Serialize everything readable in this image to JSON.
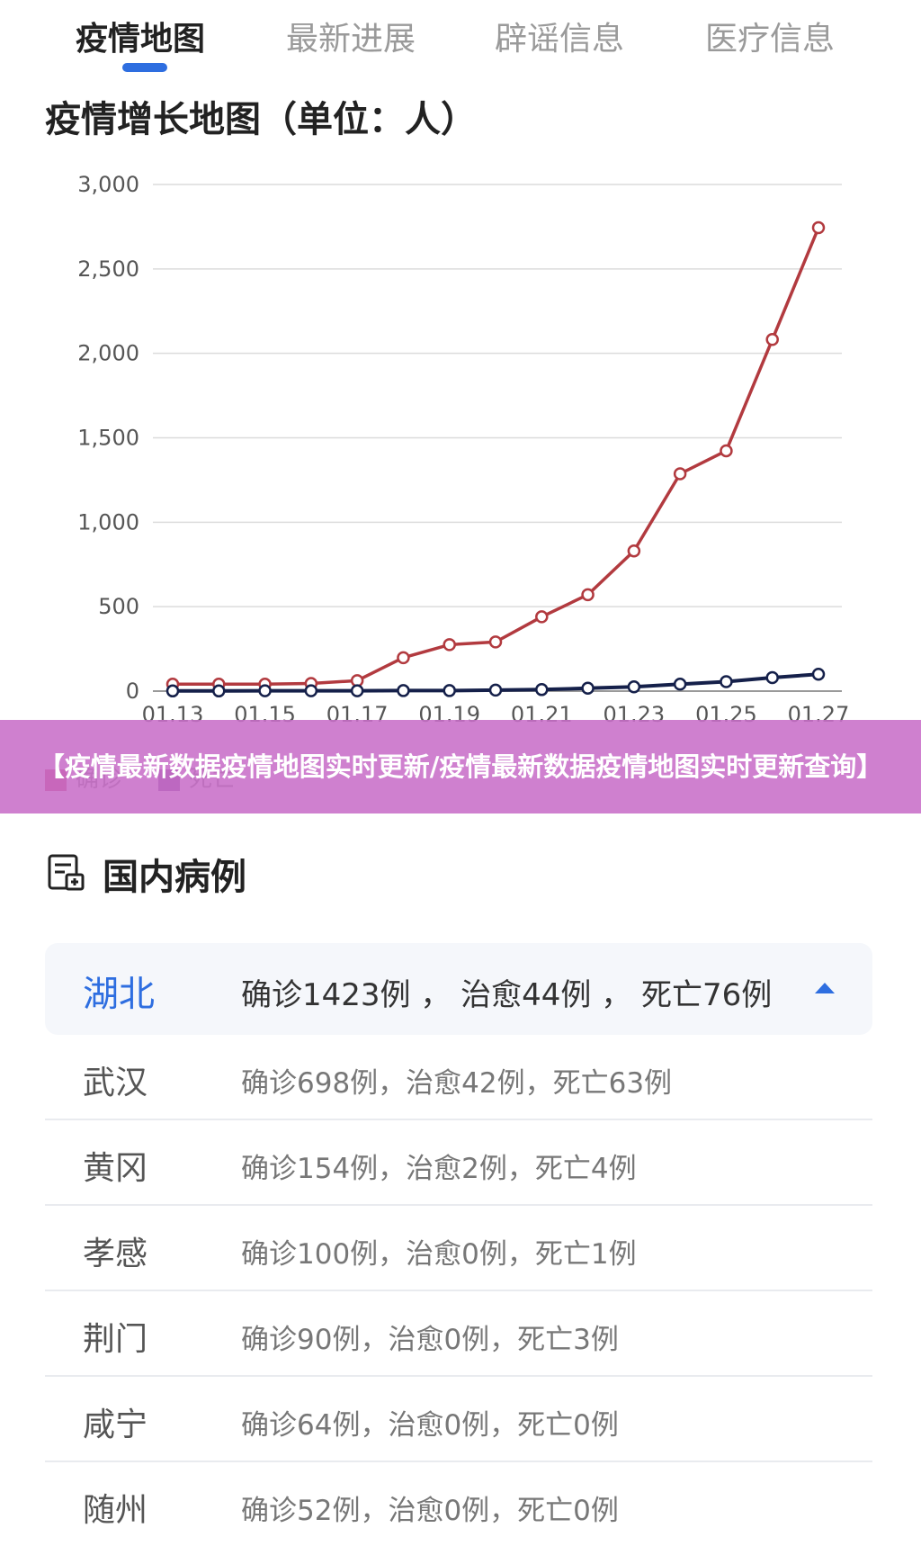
{
  "tabs": [
    {
      "label": "疫情地图",
      "active": true
    },
    {
      "label": "最新进展",
      "active": false
    },
    {
      "label": "辟谣信息",
      "active": false
    },
    {
      "label": "医疗信息",
      "active": false
    }
  ],
  "chart_title": "疫情增长地图（单位：人）",
  "chart_data": {
    "type": "line",
    "title": "疫情增长地图（单位：人）",
    "x": [
      "01.13",
      "01.14",
      "01.15",
      "01.16",
      "01.17",
      "01.18",
      "01.19",
      "01.20",
      "01.21",
      "01.22",
      "01.23",
      "01.24",
      "01.25",
      "01.26",
      "01.27"
    ],
    "x_tick_labels": [
      "01.13",
      "01.15",
      "01.17",
      "01.19",
      "01.21",
      "01.23",
      "01.25",
      "01.27"
    ],
    "ylim": [
      0,
      3000
    ],
    "y_ticks": [
      "0",
      "500",
      "1,000",
      "1,500",
      "2,000",
      "2,500",
      "3,000"
    ],
    "grid": true,
    "legend_position": "bottom-left",
    "series": [
      {
        "name": "确诊",
        "color": "#b23a3f",
        "values": [
          41,
          41,
          41,
          45,
          62,
          198,
          275,
          291,
          440,
          571,
          830,
          1287,
          1423,
          2082,
          2744
        ]
      },
      {
        "name": "死亡",
        "color": "#15204a",
        "values": [
          1,
          1,
          2,
          2,
          2,
          3,
          3,
          6,
          9,
          17,
          25,
          41,
          56,
          80,
          100
        ]
      }
    ]
  },
  "banner": "【疫情最新数据疫情地图实时更新/疫情最新数据疫情地图实时更新查询】",
  "section_title": "国内病例",
  "province": {
    "name": "湖北",
    "stats": "确诊1423例 ， 治愈44例 ， 死亡76例"
  },
  "cities": [
    {
      "name": "武汉",
      "stats": "确诊698例，治愈42例，死亡63例"
    },
    {
      "name": "黄冈",
      "stats": "确诊154例，治愈2例，死亡4例"
    },
    {
      "name": "孝感",
      "stats": "确诊100例，治愈0例，死亡1例"
    },
    {
      "name": "荆门",
      "stats": "确诊90例，治愈0例，死亡3例"
    },
    {
      "name": "咸宁",
      "stats": "确诊64例，治愈0例，死亡0例"
    },
    {
      "name": "随州",
      "stats": "确诊52例，治愈0例，死亡0例"
    }
  ],
  "colors": {
    "accent": "#2e6ee0",
    "confirmed": "#b23a3f",
    "deaths": "#15204a",
    "banner": "#c86ec8"
  }
}
